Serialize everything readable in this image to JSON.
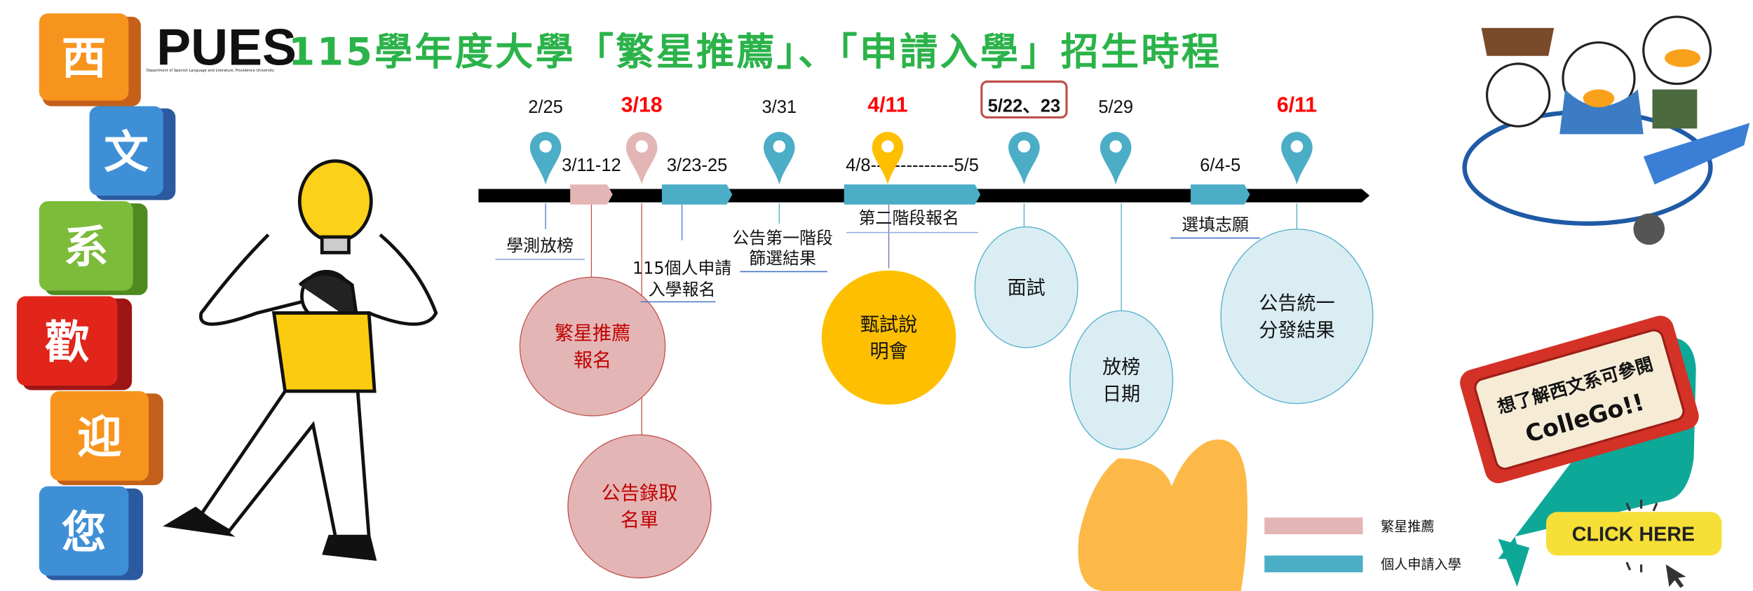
{
  "title": "115學年度大學「繁星推薦」、「申請入學」招生時程",
  "logo": {
    "letters": "PUES",
    "subtitle": "Department of Spanish Language and Literature, Providence University"
  },
  "welcome": [
    "西",
    "文",
    "系",
    "歡",
    "迎",
    "您"
  ],
  "timeline": {
    "pins": [
      {
        "date": "2/25",
        "label": "學測放榜",
        "color": "#4badc6",
        "highlight": false
      },
      {
        "date": "3/18",
        "color": "#e3b6b5",
        "highlight": true
      },
      {
        "date": "3/31",
        "label_lines": [
          "公告第一階段",
          "篩選結果"
        ],
        "color": "#4badc6",
        "highlight": false
      },
      {
        "date": "4/11",
        "color": "#fdbf00",
        "highlight": true
      },
      {
        "date": "5/22、23",
        "color": "#4badc6",
        "boxed": true
      },
      {
        "date": "5/29",
        "color": "#4badc6",
        "highlight": false
      },
      {
        "date": "6/11",
        "color": "#4badc6",
        "highlight": true
      }
    ],
    "periods": [
      {
        "range": "3/11-12",
        "color": "#e3b6b5"
      },
      {
        "range": "3/23-25",
        "label_lines": [
          "115個人申請",
          "入學報名"
        ],
        "color": "#4badc6"
      },
      {
        "range": "4/8--------------5/5",
        "label": "第二階段報名",
        "color": "#4badc6"
      },
      {
        "range": "6/4-5",
        "label": "選填志願",
        "color": "#4badc6"
      }
    ],
    "bubbles": [
      {
        "lines": [
          "繁星推薦",
          "報名"
        ],
        "color": "#e3b6b5",
        "text_color": "#c00000"
      },
      {
        "lines": [
          "公告錄取",
          "名單"
        ],
        "color": "#e3b6b5",
        "text_color": "#c00000"
      },
      {
        "lines": [
          "甄試說",
          "明會"
        ],
        "color": "#fdbf00",
        "text_color": "#111111"
      },
      {
        "lines": [
          "面試"
        ],
        "color": "#daedf3",
        "text_color": "#111111"
      },
      {
        "lines": [
          "放榜",
          "日期"
        ],
        "color": "#daedf3",
        "text_color": "#111111"
      },
      {
        "lines": [
          "公告統一",
          "分發結果"
        ],
        "color": "#daedf3",
        "text_color": "#111111"
      }
    ]
  },
  "legend": [
    {
      "label": "繁星推薦",
      "color": "#e3b6b5"
    },
    {
      "label": "個人申請入學",
      "color": "#4badc6"
    }
  ],
  "sign": {
    "line1": "想了解西文系可參閱",
    "line2": "ColleGo!!"
  },
  "cta": {
    "label": "CLICK HERE"
  }
}
